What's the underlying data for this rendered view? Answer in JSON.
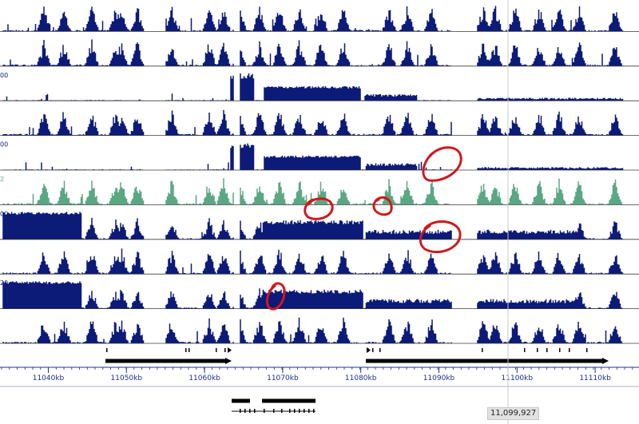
{
  "colors": {
    "signal": "#0c1a78",
    "signal_alt": "#5aa784",
    "annotation_circle": "#d0181c",
    "ruler": "#1f2f8f",
    "gene": "#000000",
    "track_divider": "#3a3a3a",
    "cursor_line": "#c8c8c8"
  },
  "tracks": [
    {
      "name": "signal-track-1",
      "scale_label": "",
      "color": "signal",
      "profile": "peaks"
    },
    {
      "name": "signal-track-2",
      "scale_label": "",
      "color": "signal",
      "profile": "peaks"
    },
    {
      "name": "signal-track-3",
      "scale_label": "00",
      "color": "signal",
      "profile": "blocks"
    },
    {
      "name": "signal-track-4",
      "scale_label": "",
      "color": "signal",
      "profile": "peaks"
    },
    {
      "name": "signal-track-5",
      "scale_label": "00",
      "color": "signal",
      "profile": "blocks"
    },
    {
      "name": "signal-track-6",
      "scale_label": "2",
      "color": "signal_alt",
      "profile": "peaks"
    },
    {
      "name": "signal-track-7",
      "scale_label": "00",
      "color": "signal",
      "profile": "leftblock"
    },
    {
      "name": "signal-track-8",
      "scale_label": "",
      "color": "signal",
      "profile": "peaks"
    },
    {
      "name": "signal-track-9",
      "scale_label": "20",
      "color": "signal",
      "profile": "leftblock"
    },
    {
      "name": "signal-track-10",
      "scale_label": "",
      "color": "signal",
      "profile": "peaks"
    }
  ],
  "ruler": {
    "unit": "kb",
    "tick_labels": [
      "11040kb",
      "11050kb",
      "11060kb",
      "11070kb",
      "11080kb",
      "11090kb",
      "11100kb",
      "11110kb"
    ]
  },
  "cursor": {
    "readout": "11,099,927"
  }
}
